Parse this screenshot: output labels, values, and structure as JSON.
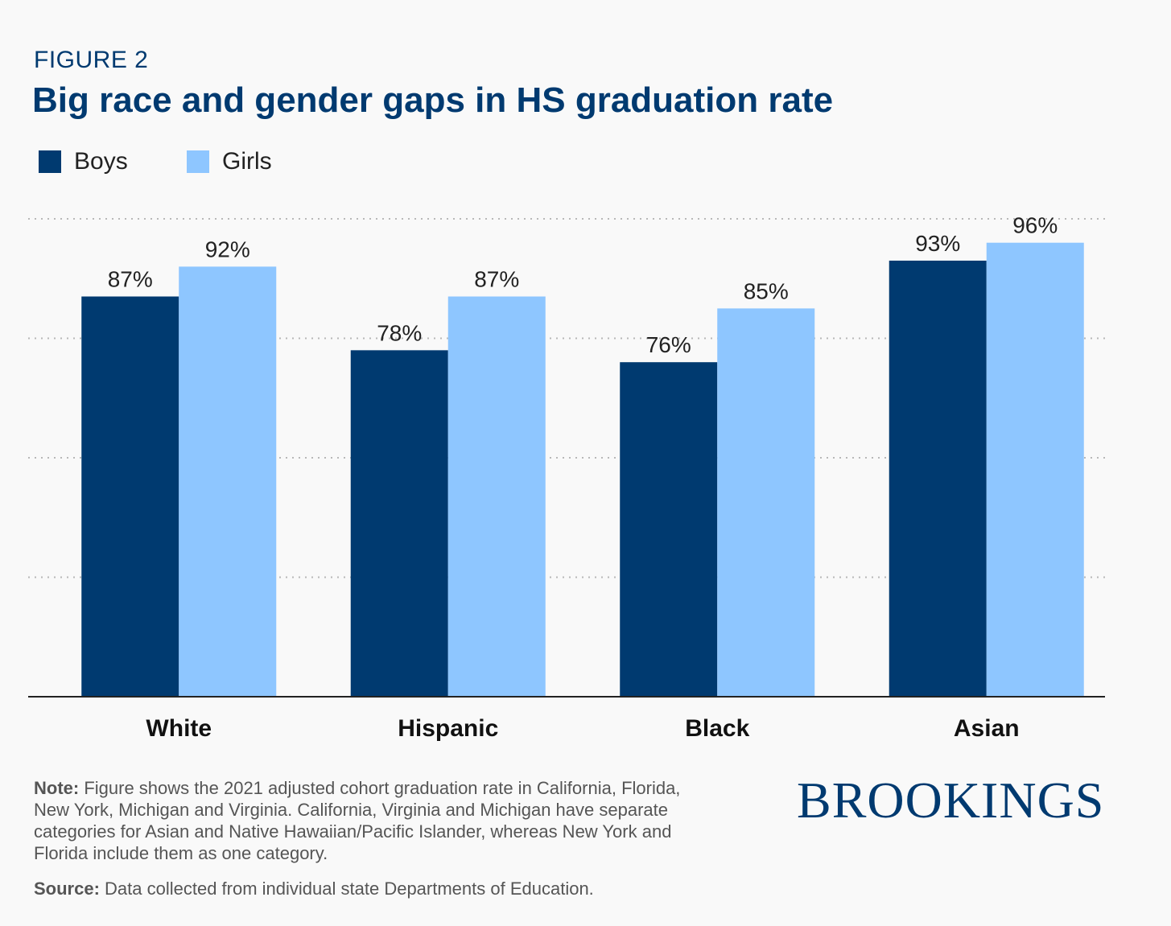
{
  "header": {
    "figure_label": "FIGURE 2",
    "title": "Big race and gender gaps in HS graduation rate"
  },
  "legend": [
    {
      "label": "Boys",
      "color": "#003a70"
    },
    {
      "label": "Girls",
      "color": "#8ec6ff"
    }
  ],
  "chart_data": {
    "type": "bar",
    "title": "Big race and gender gaps in HS graduation rate",
    "categories": [
      "White",
      "Hispanic",
      "Black",
      "Asian"
    ],
    "series": [
      {
        "name": "Boys",
        "values": [
          87,
          78,
          76,
          93
        ],
        "labels": [
          "87%",
          "78%",
          "76%",
          "93%"
        ],
        "color": "#003a70"
      },
      {
        "name": "Girls",
        "values": [
          92,
          87,
          85,
          96
        ],
        "labels": [
          "92%",
          "87%",
          "85%",
          "96%"
        ],
        "color": "#8ec6ff"
      }
    ],
    "ylim": [
      20,
      100
    ],
    "grid": true,
    "legend_position": "top-left"
  },
  "footer": {
    "note_label": "Note:",
    "note_text": " Figure shows the 2021 adjusted cohort graduation rate in California, Florida, New York, Michigan and Virginia. California, Virginia and Michigan have separate categories for Asian  and Native Hawaiian/Pacific Islander, whereas New York and Florida include them as one category.",
    "source_label": "Source:",
    "source_text": " Data collected from individual state Departments of Education.",
    "brand": "BROOKINGS"
  }
}
